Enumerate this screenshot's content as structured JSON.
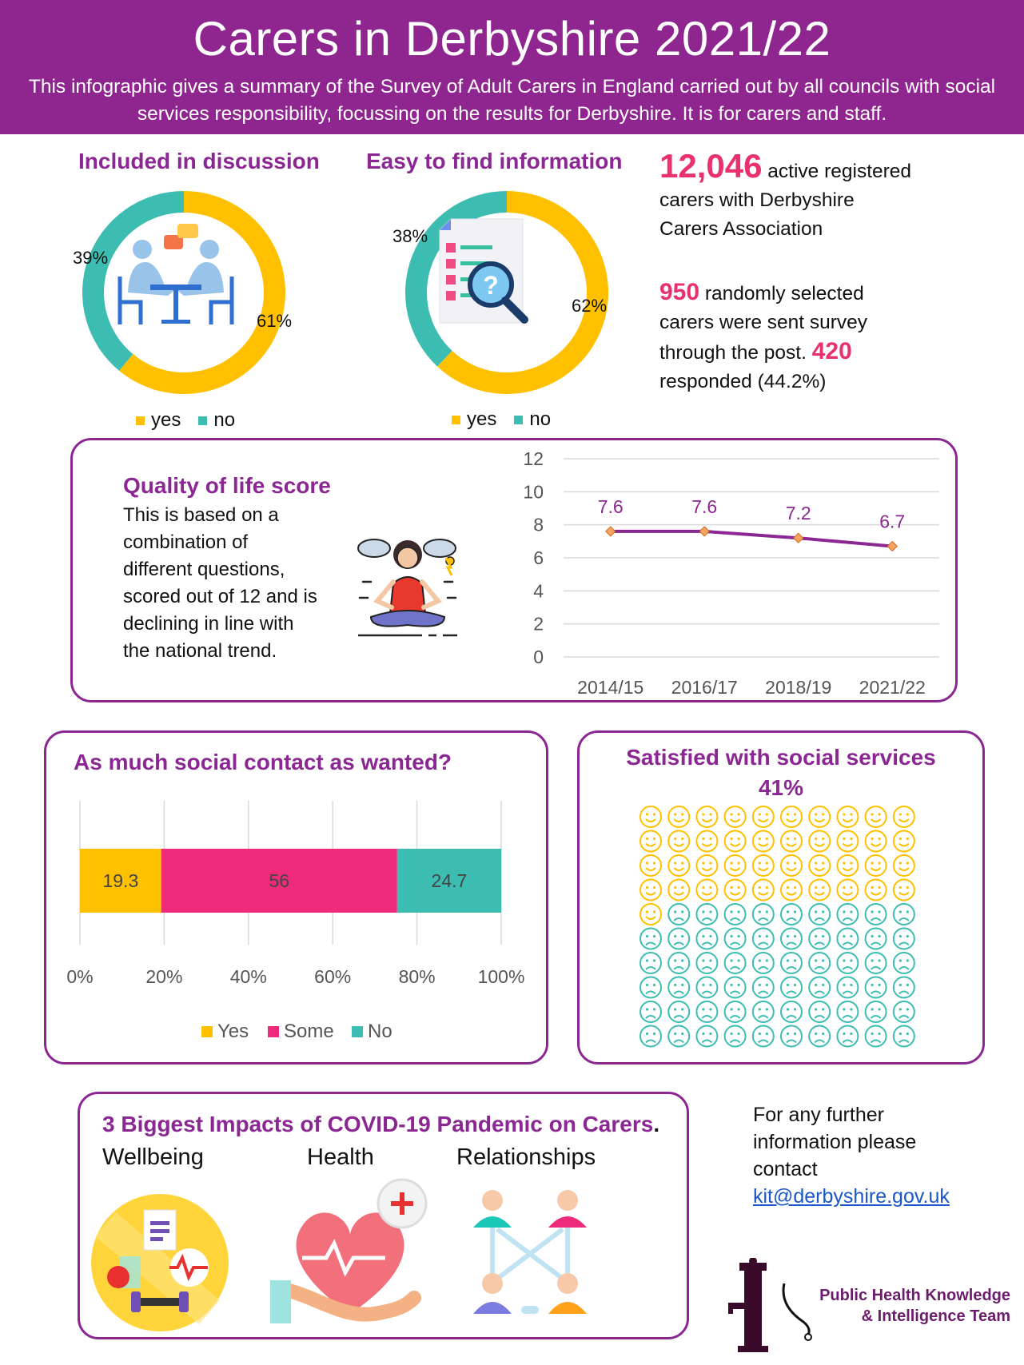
{
  "header": {
    "title": "Carers in Derbyshire 2021/22",
    "subtitle": "This infographic gives a summary of the Survey of Adult Carers in England  carried out by all councils with social services responsibility, focussing on the results for Derbyshire. It is for carers and staff."
  },
  "colors": {
    "yes": "#FFC000",
    "no": "#3DBDB1",
    "some": "#EE2A7B",
    "purple": "#8B2792",
    "pink": "#E8316E"
  },
  "donut1": {
    "title": "Included in discussion",
    "icon": "people-at-table-icon"
  },
  "donut2": {
    "title": "Easy to find information",
    "icon": "document-search-icon"
  },
  "stats": {
    "carers_number": "12,046",
    "carers_text_1": "active registered",
    "carers_text_2": "carers with Derbyshire",
    "carers_text_3": "Carers Association",
    "sent_number": "950",
    "sent_text_1": "randomly selected",
    "sent_text_2": "carers were sent survey",
    "sent_text_3": "through the post.",
    "responded_number": "420",
    "responded_text": "responded (44.2%)"
  },
  "quality": {
    "title": "Quality of life score",
    "lines": [
      "This is based on a",
      "combination of",
      "different questions,",
      "scored out of 12 and is",
      "declining in line with",
      "the  national trend."
    ],
    "icon": "meditating-woman-icon"
  },
  "social_contact": {
    "title": "As much social contact as wanted?"
  },
  "satisfied": {
    "title": "Satisfied with social services",
    "percent": "41%",
    "happy_count": 41,
    "total": 100
  },
  "covid": {
    "title": "3 Biggest Impacts of COVID-19 Pandemic on Carers",
    "period": ".",
    "items": [
      {
        "label": "Wellbeing",
        "icon": "wellbeing-icon"
      },
      {
        "label": "Health",
        "icon": "heart-health-icon"
      },
      {
        "label": "Relationships",
        "icon": "relationships-icon"
      }
    ]
  },
  "contact": {
    "line1": "For any further",
    "line2": "information please",
    "line3": "contact",
    "email": "kit@derbyshire.gov.uk"
  },
  "logo": {
    "line1": "Public Health Knowledge",
    "line2": "& Intelligence Team"
  },
  "chart_data": [
    {
      "type": "pie",
      "title": "Included in discussion",
      "labels": [
        "yes",
        "no"
      ],
      "values": [
        61,
        39
      ],
      "value_labels": [
        "61%",
        "39%"
      ],
      "legend": "bottom"
    },
    {
      "type": "pie",
      "title": "Easy to find information",
      "labels": [
        "yes",
        "no"
      ],
      "values": [
        62,
        38
      ],
      "value_labels": [
        "62%",
        "38%"
      ],
      "legend": "bottom"
    },
    {
      "type": "line",
      "title": "",
      "categories": [
        "2014/15",
        "2016/17",
        "2018/19",
        "2021/22"
      ],
      "series": [
        {
          "values": [
            7.6,
            7.6,
            7.2,
            6.7
          ]
        }
      ],
      "data_labels": [
        "7.6",
        "7.6",
        "7.2",
        "6.7"
      ],
      "ylim": [
        0,
        12
      ],
      "yticks": [
        "0",
        "2",
        "4",
        "6",
        "8",
        "10",
        "12"
      ],
      "grid": true
    },
    {
      "type": "bar",
      "title": "",
      "orientation": "horizontal-stacked",
      "series": [
        {
          "name": "Yes",
          "values": [
            19.3
          ]
        },
        {
          "name": "Some",
          "values": [
            56
          ]
        },
        {
          "name": "No",
          "values": [
            24.7
          ]
        }
      ],
      "data_labels": [
        "19.3",
        "56",
        "24.7"
      ],
      "xticks": [
        "0%",
        "20%",
        "40%",
        "60%",
        "80%",
        "100%"
      ],
      "xlim": [
        0,
        100
      ],
      "legend": "bottom",
      "grid": true
    }
  ]
}
